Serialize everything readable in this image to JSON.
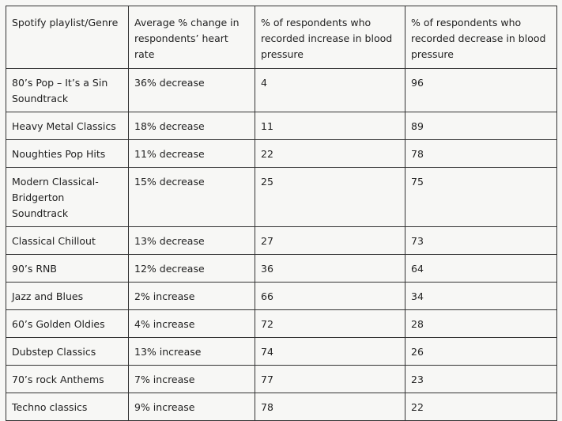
{
  "table": {
    "header": [
      "Spotify playlist/Genre",
      "Average % change in respondents’ heart rate",
      "% of respondents who recorded increase in blood pressure",
      "% of respondents who recorded decrease in blood pressure"
    ],
    "rows": [
      [
        "80’s Pop – It’s a Sin Soundtrack",
        "36% decrease",
        4,
        96
      ],
      [
        "Heavy Metal Classics",
        "18% decrease",
        11,
        89
      ],
      [
        "Noughties Pop Hits",
        "11% decrease",
        22,
        78
      ],
      [
        "Modern Classical-Bridgerton Soundtrack",
        "15% decrease",
        25,
        75
      ],
      [
        "Classical Chillout",
        "13% decrease",
        27,
        73
      ],
      [
        "90’s RNB",
        "12% decrease",
        36,
        64
      ],
      [
        "Jazz and Blues",
        "2% increase",
        66,
        34
      ],
      [
        "60’s Golden Oldies",
        "4% increase",
        72,
        28
      ],
      [
        "Dubstep Classics",
        "13% increase",
        74,
        26
      ],
      [
        "70’s rock Anthems",
        "7% increase",
        77,
        23
      ],
      [
        "Techno classics",
        "9% increase",
        78,
        22
      ]
    ]
  }
}
